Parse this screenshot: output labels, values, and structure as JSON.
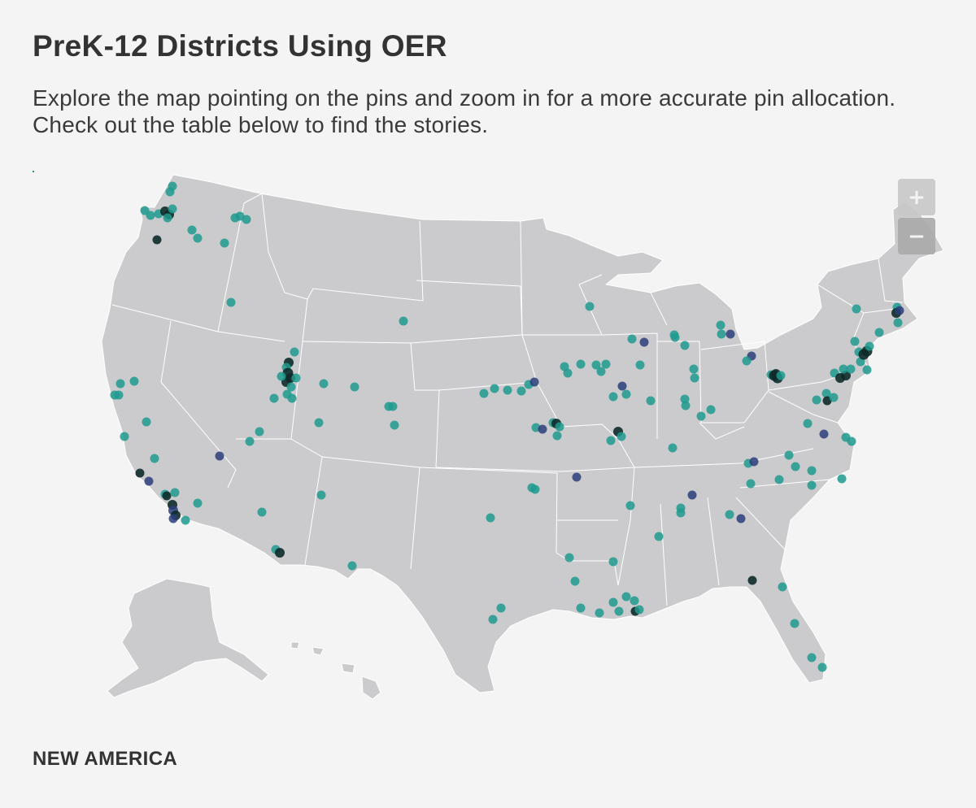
{
  "header": {
    "title": "PreK-12 Districts Using OER",
    "subtitle": "Explore the map pointing on the pins and zoom in for a more accurate pin allocation. Check out the table below to find the stories."
  },
  "zoom": {
    "in_label": "+",
    "out_label": "−"
  },
  "footer": {
    "brand": "NEW AMERICA"
  },
  "colors": {
    "land": "#cbcbcd",
    "background": "#f4f4f4",
    "pin_teal": "#1f9a8e",
    "pin_navy": "#2b3e7a",
    "pin_dark": "#0d2b2a"
  },
  "map": {
    "region": "United States (contiguous, Alaska, Hawaii)"
  }
}
